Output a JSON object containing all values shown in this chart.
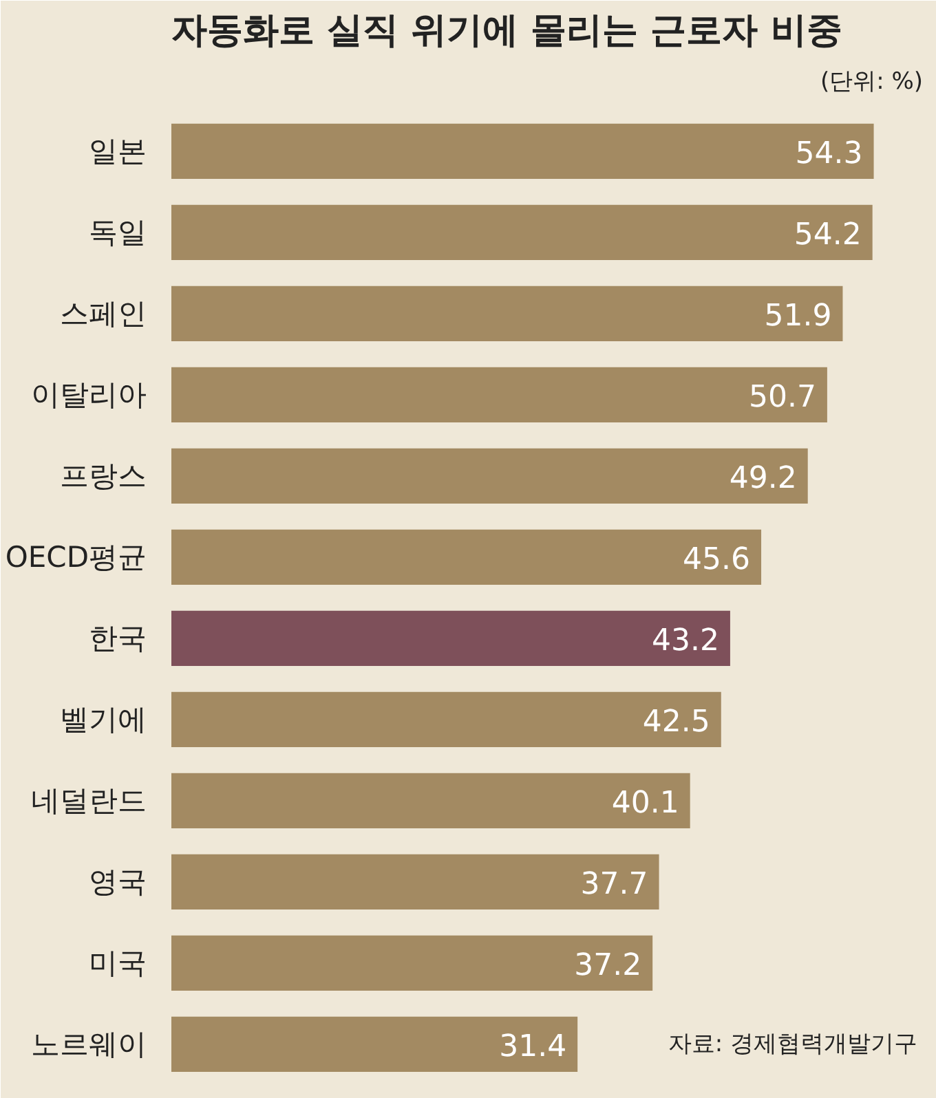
{
  "chart_data": {
    "type": "bar",
    "orientation": "horizontal",
    "title": "자동화로 실직 위기에 몰리는 근로자 비중",
    "subtitle": "(단위: %)",
    "categories": [
      "일본",
      "독일",
      "스페인",
      "이탈리아",
      "프랑스",
      "OECD평균",
      "한국",
      "벨기에",
      "네덜란드",
      "영국",
      "미국",
      "노르웨이"
    ],
    "values": [
      54.3,
      54.2,
      51.9,
      50.7,
      49.2,
      45.6,
      43.2,
      42.5,
      40.1,
      37.7,
      37.2,
      31.4
    ],
    "colors": [
      "#a38a62",
      "#a38a62",
      "#a38a62",
      "#a38a62",
      "#a38a62",
      "#a38a62",
      "#7e505a",
      "#a38a62",
      "#a38a62",
      "#a38a62",
      "#a38a62",
      "#a38a62"
    ],
    "data_labels": true,
    "grid": false,
    "annotations": [
      "자료: 경제협력개발기구"
    ]
  }
}
